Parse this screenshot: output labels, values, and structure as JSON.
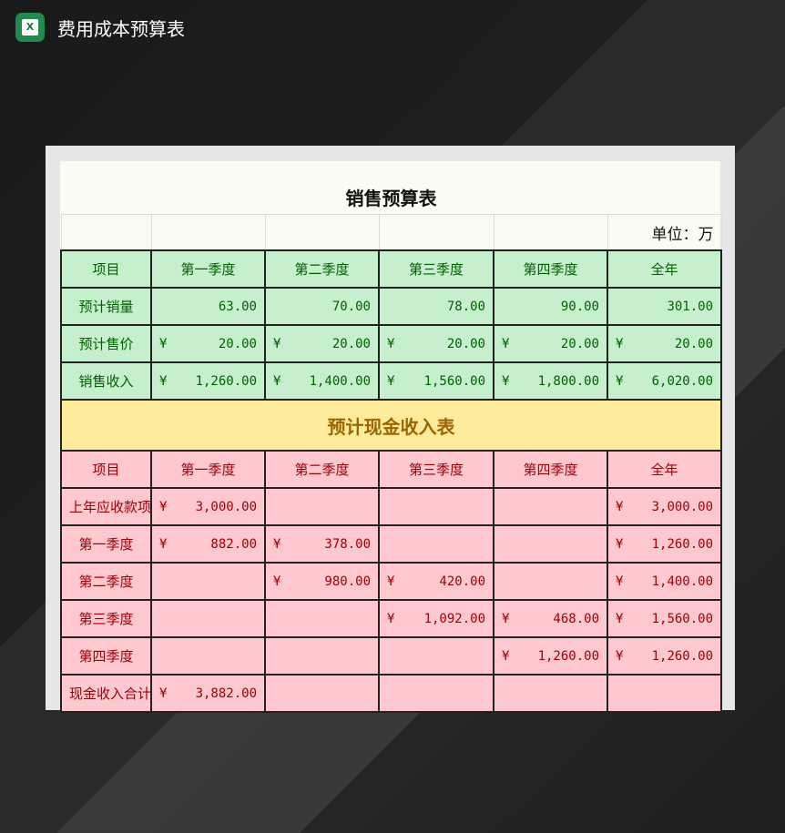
{
  "app": {
    "title": "费用成本预算表",
    "icon": "excel-icon"
  },
  "sales": {
    "title": "销售预算表",
    "unit": "单位：万",
    "headers": [
      "项目",
      "第一季度",
      "第二季度",
      "第三季度",
      "第四季度",
      "全年"
    ],
    "rows": [
      {
        "label": "预计销量",
        "values": [
          "63.00",
          "70.00",
          "78.00",
          "90.00",
          "301.00"
        ],
        "currency": false
      },
      {
        "label": "预计售价",
        "values": [
          "20.00",
          "20.00",
          "20.00",
          "20.00",
          "20.00"
        ],
        "currency": true
      },
      {
        "label": "销售收入",
        "values": [
          "1,260.00",
          "1,400.00",
          "1,560.00",
          "1,800.00",
          "6,020.00"
        ],
        "currency": true
      }
    ]
  },
  "cash": {
    "title": "预计现金收入表",
    "headers": [
      "项目",
      "第一季度",
      "第二季度",
      "第三季度",
      "第四季度",
      "全年"
    ],
    "rows": [
      {
        "label": "上年应收款项",
        "values": [
          "3,000.00",
          "",
          "",
          "",
          "3,000.00"
        ]
      },
      {
        "label": "第一季度",
        "values": [
          "882.00",
          "378.00",
          "",
          "",
          "1,260.00"
        ]
      },
      {
        "label": "第二季度",
        "values": [
          "",
          "980.00",
          "420.00",
          "",
          "1,400.00"
        ]
      },
      {
        "label": "第三季度",
        "values": [
          "",
          "",
          "1,092.00",
          "468.00",
          "1,560.00"
        ]
      },
      {
        "label": "第四季度",
        "values": [
          "",
          "",
          "",
          "1,260.00",
          "1,260.00"
        ]
      },
      {
        "label": "现金收入合计",
        "values": [
          "3,882.00",
          "",
          "",
          "",
          ""
        ]
      }
    ]
  },
  "currency_symbol": "¥",
  "colors": {
    "green_fill": "#c6efce",
    "green_text": "#006100",
    "pink_fill": "#ffc7ce",
    "pink_text": "#9c0006",
    "yellow_fill": "#ffeb9c",
    "yellow_text": "#9c6500"
  }
}
